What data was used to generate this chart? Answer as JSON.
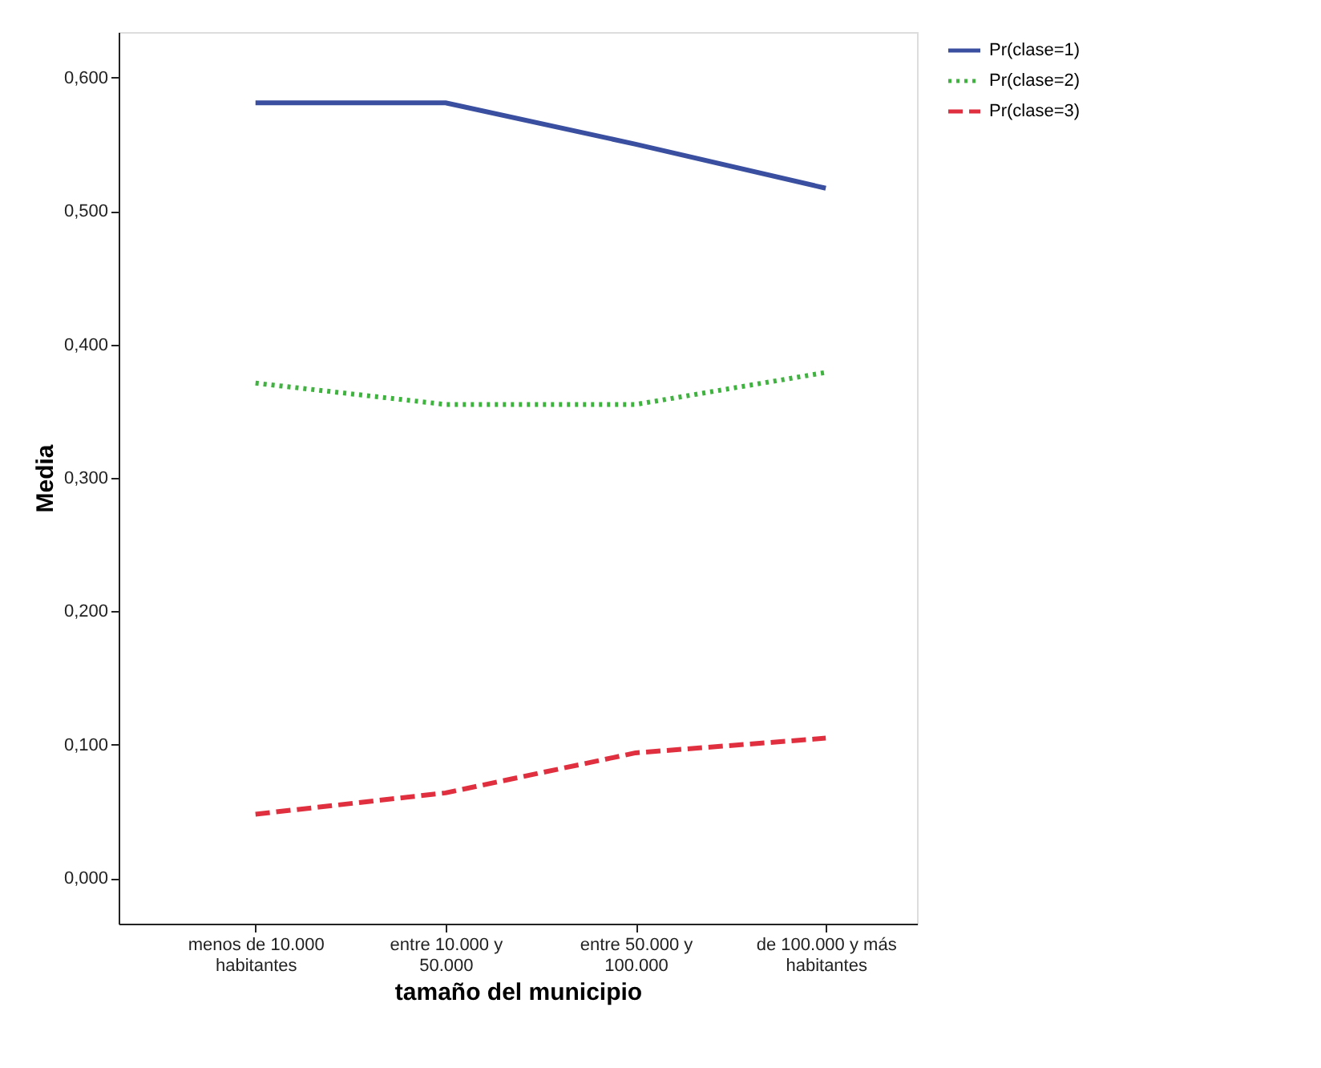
{
  "chart_data": {
    "type": "line",
    "xlabel": "tamaño del municipio",
    "ylabel": "Media",
    "categories": [
      "menos de 10.000\nhabitantes",
      "entre 10.000 y\n50.000",
      "entre 50.000 y\n100.000",
      "de 100.000 y más\nhabitantes"
    ],
    "series": [
      {
        "name": "Pr(clase=1)",
        "color": "#3a4fa0",
        "line_style": "solid",
        "values": [
          0.581,
          0.581,
          0.55,
          0.517
        ]
      },
      {
        "name": "Pr(clase=2)",
        "color": "#3fb23f",
        "line_style": "dotted",
        "values": [
          0.371,
          0.355,
          0.355,
          0.379
        ]
      },
      {
        "name": "Pr(clase=3)",
        "color": "#e03040",
        "line_style": "dashed",
        "values": [
          0.048,
          0.064,
          0.094,
          0.105
        ]
      }
    ],
    "ylim": [
      -0.034,
      0.634
    ],
    "yticks": [
      {
        "value": 0,
        "label": "0,000"
      },
      {
        "value": 0.1,
        "label": "0,100"
      },
      {
        "value": 0.2,
        "label": "0,200"
      },
      {
        "value": 0.3,
        "label": "0,300"
      },
      {
        "value": 0.4,
        "label": "0,400"
      },
      {
        "value": 0.5,
        "label": "0,500"
      },
      {
        "value": 0.6,
        "label": "0,600"
      }
    ],
    "legend": "top right",
    "grid": false,
    "marker": "none"
  }
}
